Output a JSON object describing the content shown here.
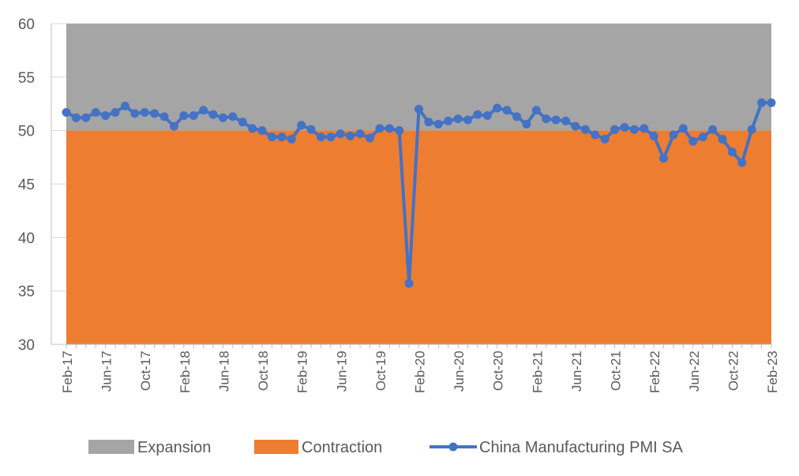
{
  "chart_data": {
    "type": "line",
    "title": "",
    "xlabel": "",
    "ylabel": "",
    "ylim": [
      30,
      60
    ],
    "yticks": [
      "60",
      "55",
      "50",
      "45",
      "40",
      "35",
      "30"
    ],
    "xtick_labels": [
      "Feb-17",
      "Jun-17",
      "Oct-17",
      "Feb-18",
      "Jun-18",
      "Oct-18",
      "Feb-19",
      "Jun-19",
      "Oct-19",
      "Feb-20",
      "Jun-20",
      "Oct-20",
      "Feb-21",
      "Jun-21",
      "Oct-21",
      "Feb-22",
      "Jun-22",
      "Oct-22",
      "Feb-23"
    ],
    "grid": true,
    "legend_position": "bottom",
    "areas": [
      {
        "name": "Expansion",
        "color": "#a5a5a5",
        "from": 50,
        "to": 60
      },
      {
        "name": "Contraction",
        "color": "#ed7d31",
        "from": 30,
        "to": 50
      }
    ],
    "series": [
      {
        "name": "China Manufacturing PMI SA",
        "color": "#4472c4",
        "x": [
          "Feb-17",
          "Mar-17",
          "Apr-17",
          "May-17",
          "Jun-17",
          "Jul-17",
          "Aug-17",
          "Sep-17",
          "Oct-17",
          "Nov-17",
          "Dec-17",
          "Jan-18",
          "Feb-18",
          "Mar-18",
          "Apr-18",
          "May-18",
          "Jun-18",
          "Jul-18",
          "Aug-18",
          "Sep-18",
          "Oct-18",
          "Nov-18",
          "Dec-18",
          "Jan-19",
          "Feb-19",
          "Mar-19",
          "Apr-19",
          "May-19",
          "Jun-19",
          "Jul-19",
          "Aug-19",
          "Sep-19",
          "Oct-19",
          "Nov-19",
          "Dec-19",
          "Jan-20",
          "Feb-20",
          "Mar-20",
          "Apr-20",
          "May-20",
          "Jun-20",
          "Jul-20",
          "Aug-20",
          "Sep-20",
          "Oct-20",
          "Nov-20",
          "Dec-20",
          "Jan-21",
          "Feb-21",
          "Mar-21",
          "Apr-21",
          "May-21",
          "Jun-21",
          "Jul-21",
          "Aug-21",
          "Sep-21",
          "Oct-21",
          "Nov-21",
          "Dec-21",
          "Jan-22",
          "Feb-22",
          "Mar-22",
          "Apr-22",
          "May-22",
          "Jun-22",
          "Jul-22",
          "Aug-22",
          "Sep-22",
          "Oct-22",
          "Nov-22",
          "Dec-22",
          "Jan-23",
          "Feb-23"
        ],
        "values": [
          51.7,
          51.2,
          51.2,
          51.7,
          51.4,
          51.7,
          52.3,
          51.6,
          51.7,
          51.6,
          51.3,
          50.4,
          51.4,
          51.4,
          51.9,
          51.5,
          51.2,
          51.3,
          50.8,
          50.2,
          50.0,
          49.4,
          49.4,
          49.2,
          50.5,
          50.1,
          49.4,
          49.4,
          49.7,
          49.5,
          49.7,
          49.3,
          50.2,
          50.2,
          50.0,
          35.7,
          52.0,
          50.8,
          50.6,
          50.9,
          51.1,
          51.0,
          51.5,
          51.4,
          52.1,
          51.9,
          51.3,
          50.6,
          51.9,
          51.1,
          51.0,
          50.9,
          50.4,
          50.1,
          49.6,
          49.2,
          50.1,
          50.3,
          50.1,
          50.2,
          49.5,
          47.4,
          49.6,
          50.2,
          49.0,
          49.4,
          50.1,
          49.2,
          48.0,
          47.0,
          50.1,
          52.6,
          52.6
        ]
      }
    ]
  }
}
